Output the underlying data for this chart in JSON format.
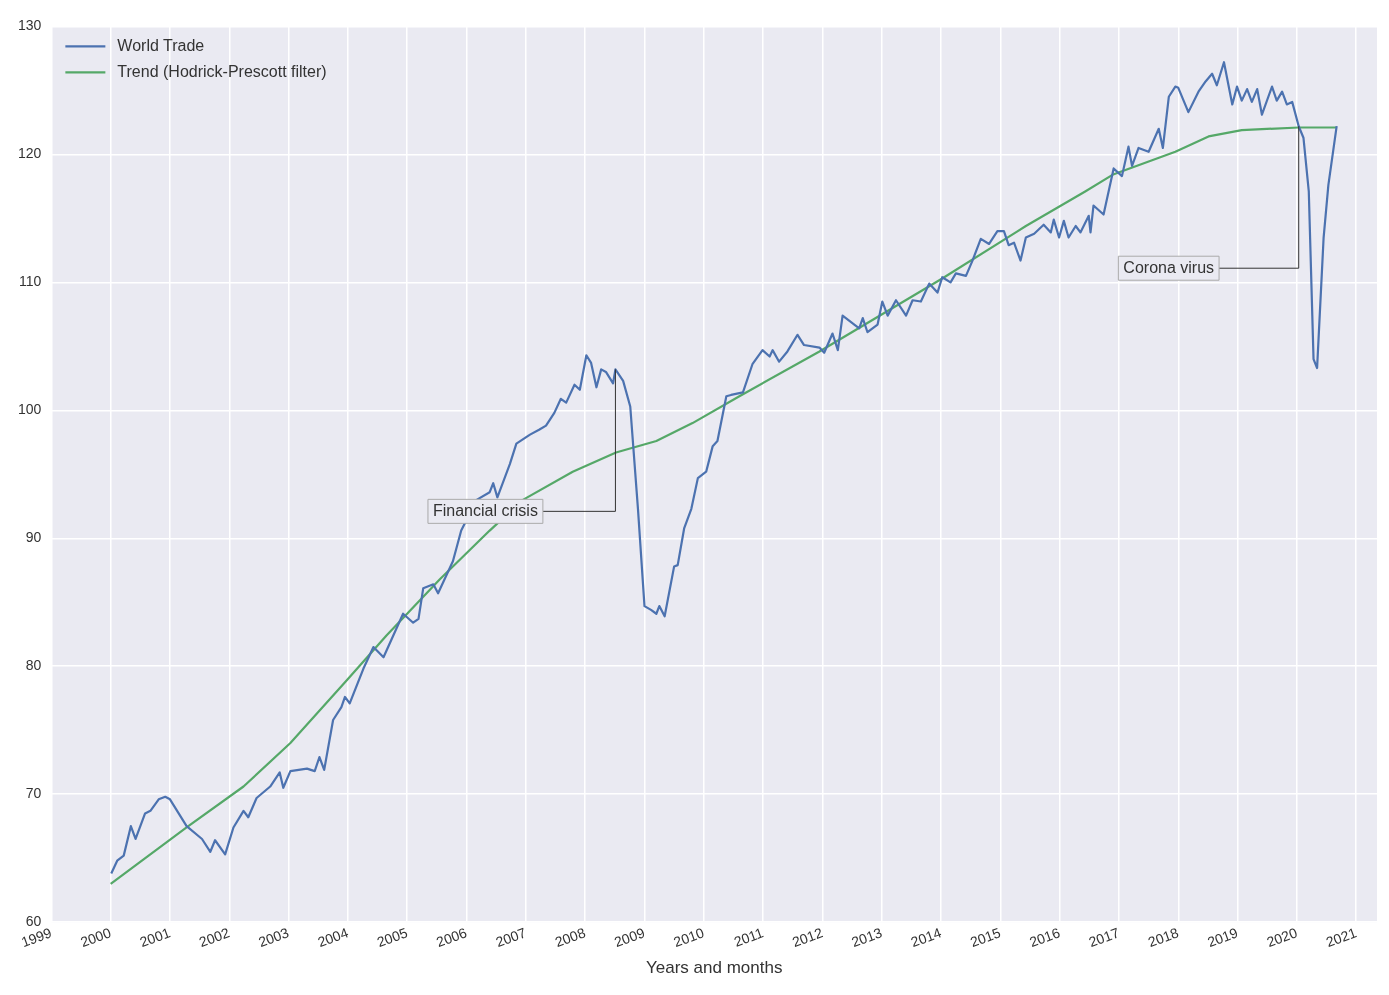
{
  "chart_data": {
    "type": "line",
    "xlabel": "Years and months",
    "xlim": [
      1999,
      2021.35
    ],
    "xticks": [
      1999,
      2000,
      2001,
      2002,
      2003,
      2004,
      2005,
      2006,
      2007,
      2008,
      2009,
      2010,
      2011,
      2012,
      2013,
      2014,
      2015,
      2016,
      2017,
      2018,
      2019,
      2020,
      2021
    ],
    "ylim": [
      60,
      130
    ],
    "yticks": [
      60,
      70,
      80,
      90,
      100,
      110,
      120,
      130
    ],
    "grid": true,
    "legend": "top left",
    "marker": "none",
    "line_style": "solid",
    "series": [
      {
        "name": "World Trade",
        "color": "#4c72b0",
        "x": [
          2000.01,
          2000.11,
          2000.22,
          2000.34,
          2000.42,
          2000.58,
          2000.67,
          2000.81,
          2000.92,
          2001.0,
          2001.28,
          2001.54,
          2001.68,
          2001.76,
          2001.93,
          2002.07,
          2002.24,
          2002.32,
          2002.46,
          2002.69,
          2002.85,
          2002.91,
          2003.03,
          2003.31,
          2003.44,
          2003.52,
          2003.6,
          2003.75,
          2003.89,
          2003.95,
          2004.03,
          2004.26,
          2004.43,
          2004.6,
          2004.93,
          2005.1,
          2005.19,
          2005.27,
          2005.44,
          2005.52,
          2005.77,
          2005.91,
          2006.17,
          2006.39,
          2006.45,
          2006.52,
          2006.73,
          2006.84,
          2007.07,
          2007.23,
          2007.34,
          2007.48,
          2007.59,
          2007.68,
          2007.82,
          2007.91,
          2008.02,
          2008.1,
          2008.19,
          2008.27,
          2008.35,
          2008.47,
          2008.51,
          2008.64,
          2008.76,
          2008.89,
          2009.0,
          2009.11,
          2009.2,
          2009.25,
          2009.34,
          2009.5,
          2009.56,
          2009.67,
          2009.79,
          2009.9,
          2010.04,
          2010.15,
          2010.23,
          2010.38,
          2010.46,
          2010.66,
          2010.82,
          2010.99,
          2011.11,
          2011.16,
          2011.27,
          2011.41,
          2011.58,
          2011.69,
          2011.95,
          2012.03,
          2012.17,
          2012.26,
          2012.34,
          2012.62,
          2012.68,
          2012.76,
          2012.93,
          2013.01,
          2013.1,
          2013.24,
          2013.41,
          2013.52,
          2013.66,
          2013.8,
          2013.94,
          2014.02,
          2014.16,
          2014.25,
          2014.42,
          2014.53,
          2014.67,
          2014.81,
          2014.95,
          2015.06,
          2015.14,
          2015.23,
          2015.34,
          2015.43,
          2015.57,
          2015.73,
          2015.85,
          2015.9,
          2015.99,
          2016.07,
          2016.15,
          2016.27,
          2016.35,
          2016.49,
          2016.52,
          2016.57,
          2016.74,
          2016.91,
          2017.05,
          2017.16,
          2017.22,
          2017.33,
          2017.5,
          2017.67,
          2017.74,
          2017.84,
          2017.95,
          2018.0,
          2018.17,
          2018.34,
          2018.46,
          2018.57,
          2018.65,
          2018.77,
          2018.91,
          2018.99,
          2019.07,
          2019.16,
          2019.24,
          2019.33,
          2019.41,
          2019.58,
          2019.66,
          2019.75,
          2019.83,
          2019.92,
          2020.03,
          2020.11,
          2020.2,
          2020.28,
          2020.34,
          2020.45,
          2020.53,
          2020.67
        ],
        "values": [
          63.8,
          64.8,
          65.2,
          67.5,
          66.5,
          68.5,
          68.7,
          69.6,
          69.8,
          69.6,
          67.5,
          66.5,
          65.5,
          66.4,
          65.3,
          67.4,
          68.7,
          68.2,
          69.7,
          70.6,
          71.7,
          70.5,
          71.8,
          72.0,
          71.8,
          72.9,
          71.9,
          75.8,
          76.8,
          77.6,
          77.1,
          79.8,
          81.5,
          80.7,
          84.1,
          83.4,
          83.7,
          86.1,
          86.4,
          85.7,
          88.2,
          90.6,
          93.0,
          93.6,
          94.3,
          93.2,
          95.8,
          97.4,
          98.1,
          98.5,
          98.8,
          99.8,
          100.9,
          100.6,
          102.0,
          101.6,
          104.3,
          103.7,
          101.8,
          103.2,
          103.0,
          102.1,
          103.2,
          102.3,
          100.3,
          92.3,
          84.7,
          84.4,
          84.1,
          84.7,
          83.9,
          87.8,
          87.9,
          90.8,
          92.3,
          94.7,
          95.2,
          97.2,
          97.6,
          101.1,
          101.2,
          101.4,
          103.6,
          104.7,
          104.2,
          104.7,
          103.8,
          104.6,
          105.9,
          105.1,
          104.9,
          104.5,
          106.0,
          104.7,
          107.4,
          106.4,
          107.2,
          106.1,
          106.7,
          108.5,
          107.4,
          108.6,
          107.4,
          108.6,
          108.5,
          109.9,
          109.2,
          110.4,
          110.0,
          110.7,
          110.5,
          111.7,
          113.4,
          113.0,
          114.0,
          114.0,
          112.9,
          113.1,
          111.7,
          113.5,
          113.8,
          114.5,
          113.9,
          114.9,
          113.5,
          114.8,
          113.5,
          114.4,
          113.9,
          115.2,
          113.9,
          116.0,
          115.3,
          118.9,
          118.3,
          120.6,
          119.1,
          120.5,
          120.2,
          122.0,
          120.5,
          124.5,
          125.3,
          125.2,
          123.3,
          124.9,
          125.7,
          126.3,
          125.4,
          127.2,
          123.9,
          125.3,
          124.2,
          125.1,
          124.1,
          125.1,
          123.1,
          125.3,
          124.2,
          124.9,
          123.9,
          124.1,
          122.2,
          121.3,
          117.1,
          104.0,
          103.3,
          113.5,
          117.6,
          122.2
        ]
      },
      {
        "name": "Trend (Hodrick-Prescott filter)",
        "color": "#55a868",
        "x": [
          2000.0,
          2001.28,
          2002.24,
          2003.03,
          2004.0,
          2004.65,
          2005.55,
          2006.39,
          2006.95,
          2007.79,
          2008.52,
          2009.2,
          2009.81,
          2010.6,
          2011.95,
          2014.02,
          2015.43,
          2016.43,
          2016.89,
          2017.95,
          2018.51,
          2019.07,
          2020.03,
          2020.67
        ],
        "values": [
          63.0,
          67.4,
          70.6,
          74.0,
          79.0,
          82.4,
          86.8,
          90.6,
          93.0,
          95.2,
          96.7,
          97.6,
          99.0,
          101.1,
          104.6,
          110.3,
          114.4,
          117.1,
          118.4,
          120.2,
          121.4,
          121.9,
          122.1,
          122.1
        ]
      }
    ],
    "annotations": [
      {
        "text": "Financial crisis",
        "x": 2008.51,
        "y": 103.2
      },
      {
        "text": "Corona virus",
        "x": 2020.03,
        "y": 122.2
      }
    ]
  }
}
